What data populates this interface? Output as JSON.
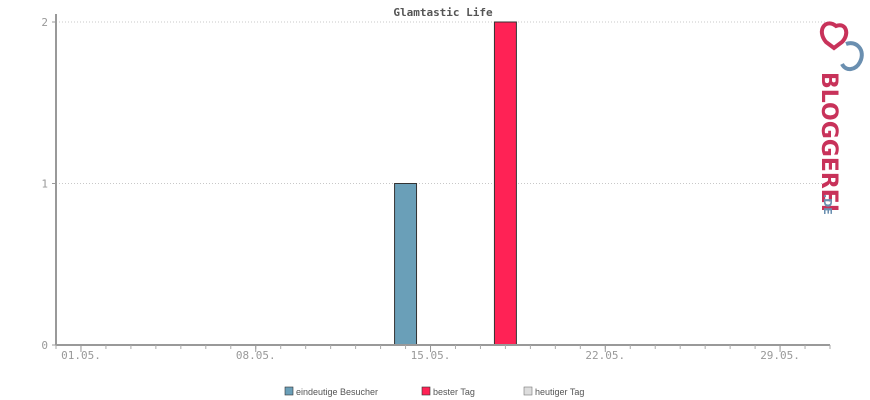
{
  "chart_data": {
    "type": "bar",
    "title": "Glamtastic Life",
    "xlabel": "",
    "ylabel": "",
    "ylim": [
      0,
      2
    ],
    "yticks": [
      "0",
      "1",
      "2"
    ],
    "x_tick_labels": [
      "01.05.",
      "08.05.",
      "15.05.",
      "22.05.",
      "29.05."
    ],
    "x_tick_days": [
      1,
      8,
      15,
      22,
      29
    ],
    "xlim_days": [
      0,
      31
    ],
    "grid": "horizontal dotted",
    "bars": [
      {
        "series": "eindeutige Besucher",
        "day": 14,
        "value": 1
      },
      {
        "series": "bester Tag",
        "day": 18,
        "value": 2
      }
    ],
    "series": [
      {
        "name": "eindeutige Besucher",
        "color": "#6a9fb8"
      },
      {
        "name": "bester Tag",
        "color": "#ff2255"
      },
      {
        "name": "heutiger Tag",
        "color": "#dddddd"
      }
    ]
  },
  "logo": {
    "text_main": "BLOGGEREI",
    "text_suffix": ".DE",
    "colors": {
      "main": "#c8325a",
      "suffix": "#6a8fb0"
    }
  }
}
